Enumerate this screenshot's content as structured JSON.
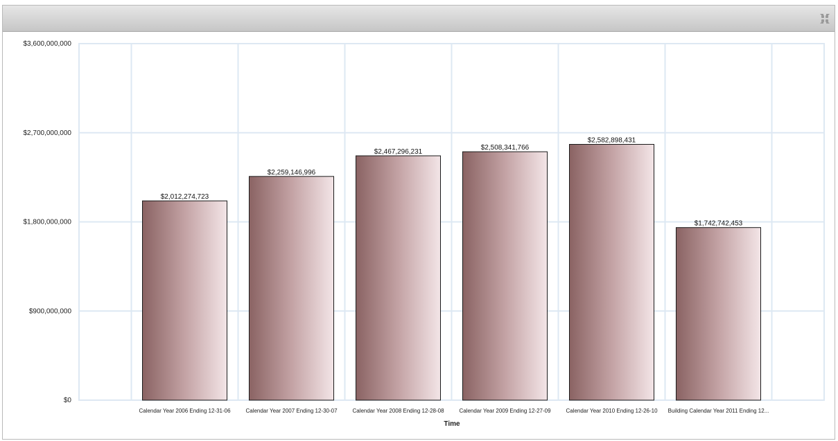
{
  "panel": {
    "collapse_icon": "collapse-arrows-icon"
  },
  "chart_data": {
    "type": "bar",
    "categories": [
      "Calendar Year 2006 Ending 12-31-06",
      "Calendar Year 2007 Ending 12-30-07",
      "Calendar Year 2008 Ending 12-28-08",
      "Calendar Year 2009 Ending 12-27-09",
      "Calendar Year 2010 Ending 12-26-10",
      "Building Calendar Year 2011 Ending 12..."
    ],
    "values": [
      2012274723,
      2259146996,
      2467296231,
      2508341766,
      2582898431,
      1742742453
    ],
    "value_labels": [
      "$2,012,274,723",
      "$2,259,146,996",
      "$2,467,296,231",
      "$2,508,341,766",
      "$2,582,898,431",
      "$1,742,742,453"
    ],
    "y_ticks": [
      0,
      900000000,
      1800000000,
      2700000000,
      3600000000
    ],
    "y_tick_labels": [
      "$0",
      "$900,000,000",
      "$1,800,000,000",
      "$2,700,000,000",
      "$3,600,000,000"
    ],
    "xlabel": "Time",
    "ylabel": "",
    "ylim": [
      0,
      3600000000
    ],
    "grid": true,
    "colors": {
      "bar_dark": "#8a6363",
      "bar_mid": "#c3a2a4",
      "bar_light": "#f3e5e7",
      "grid": "#dde8f3"
    }
  }
}
